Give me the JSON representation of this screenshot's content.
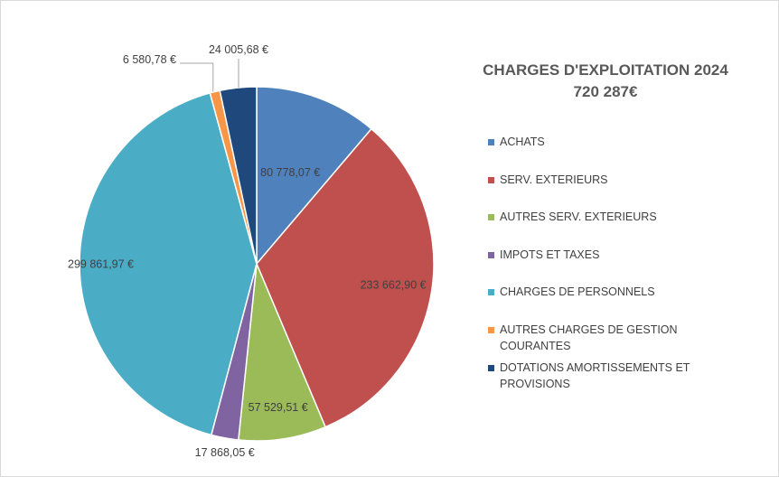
{
  "chart_data": {
    "type": "pie",
    "title": "CHARGES D'EXPLOITATION 2024",
    "subtitle": "720 287€",
    "legend_position": "right",
    "slices": [
      {
        "name": "ACHATS",
        "value": 80778.07,
        "label": "80 778,07 €",
        "color": "#4F81BD"
      },
      {
        "name": "SERV. EXTERIEURS",
        "value": 233662.9,
        "label": "233 662,90 €",
        "color": "#C0504D"
      },
      {
        "name": "AUTRES SERV. EXTERIEURS",
        "value": 57529.51,
        "label": "57 529,51 €",
        "color": "#9BBB59"
      },
      {
        "name": "IMPOTS ET TAXES",
        "value": 17868.05,
        "label": "17 868,05 €",
        "color": "#8064A2"
      },
      {
        "name": "CHARGES DE PERSONNELS",
        "value": 299861.97,
        "label": "299 861,97 €",
        "color": "#4BACC6"
      },
      {
        "name": "AUTRES CHARGES DE GESTION COURANTES",
        "value": 6580.78,
        "label": "6 580,78 €",
        "color": "#F79646"
      },
      {
        "name": "DOTATIONS AMORTISSEMENTS ET PROVISIONS",
        "value": 24005.68,
        "label": "24 005,68 €",
        "color": "#1F497D"
      }
    ]
  }
}
